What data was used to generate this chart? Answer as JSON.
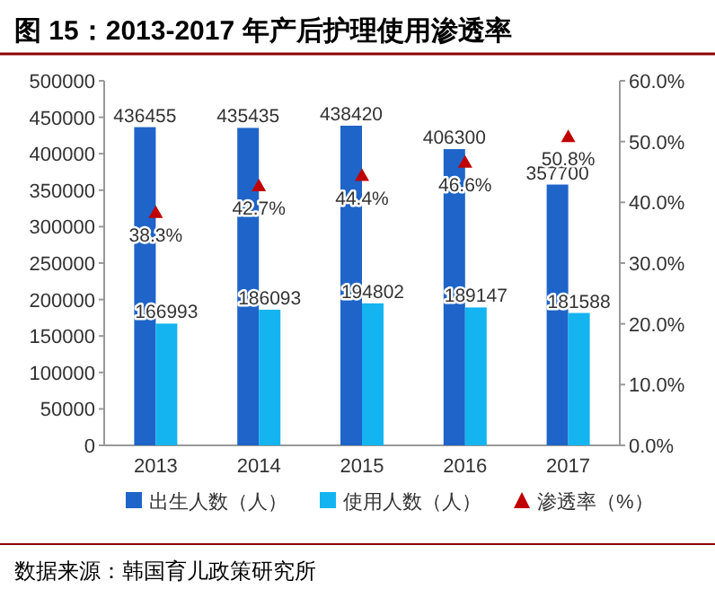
{
  "chart_data": {
    "type": "bar",
    "title": "图 15：2013-2017 年产后护理使用渗透率",
    "categories": [
      "2013",
      "2014",
      "2015",
      "2016",
      "2017"
    ],
    "series": [
      {
        "name": "出生人数（人）",
        "color": "#1f64c8",
        "values": [
          436455,
          435435,
          438420,
          406300,
          357700
        ],
        "value_labels": [
          "436455",
          "435435",
          "438420",
          "406300",
          "357700"
        ]
      },
      {
        "name": "使用人数（人）",
        "color": "#14b4f0",
        "values": [
          166993,
          186093,
          194802,
          189147,
          181588
        ],
        "value_labels": [
          "166993",
          "186093",
          "194802",
          "189147",
          "181588"
        ]
      },
      {
        "name": "渗透率（%）",
        "type": "scatter",
        "axis": "y2",
        "marker": "triangle",
        "color": "#c00000",
        "values": [
          38.3,
          42.7,
          44.4,
          46.6,
          50.8
        ],
        "value_labels": [
          "38.3%",
          "42.7%",
          "44.4%",
          "46.6%",
          "50.8%"
        ]
      }
    ],
    "ylim": [
      0,
      500000
    ],
    "yticks": [
      0,
      50000,
      100000,
      150000,
      200000,
      250000,
      300000,
      350000,
      400000,
      450000,
      500000
    ],
    "y2lim": [
      0,
      60
    ],
    "y2ticks": [
      {
        "value": 0,
        "label": "0.0%"
      },
      {
        "value": 10,
        "label": "10.0%"
      },
      {
        "value": 20,
        "label": "20.0%"
      },
      {
        "value": 30,
        "label": "30.0%"
      },
      {
        "value": 40,
        "label": "40.0%"
      },
      {
        "value": 50,
        "label": "50.0%"
      },
      {
        "value": 60,
        "label": "60.0%"
      }
    ],
    "grid": false,
    "legend": "bottom",
    "annotations": [
      "数据来源：韩国育儿政策研究所"
    ]
  }
}
